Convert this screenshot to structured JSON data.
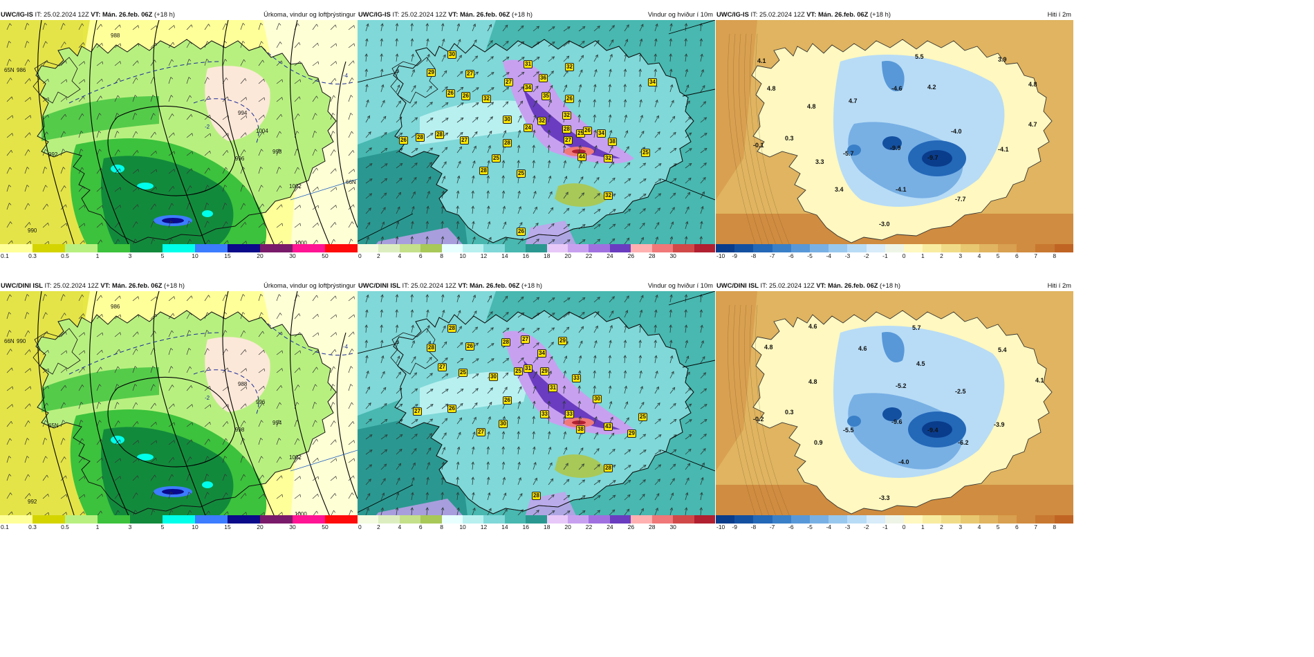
{
  "panels": [
    {
      "id": "igis-precip",
      "model": "UWC/IG-IS",
      "it": "IT: 25.02.2024 12Z",
      "vt": "VT: Mán. 26.feb. 06Z",
      "lead": "(+18 h)",
      "title": "Úrkoma, vindur og loftþrýstingur",
      "colorbar": {
        "colors": [
          "#ffff99",
          "#d4d400",
          "#b8f080",
          "#3cc23c",
          "#128a3c",
          "#00ffea",
          "#3c7cff",
          "#0a0a8a",
          "#7a1a6a",
          "#ff1493",
          "#ff0a0a"
        ],
        "ticks": [
          "0.1",
          "0.3",
          "0.5",
          "1",
          "3",
          "5",
          "10",
          "15",
          "20",
          "30",
          "50"
        ]
      },
      "map_labels": [
        "-2",
        "-4",
        "1000",
        "1002",
        "1004",
        "996",
        "998",
        "994",
        "988",
        "986",
        "990",
        "992",
        "65N",
        "66N"
      ]
    },
    {
      "id": "igis-wind",
      "model": "UWC/IG-IS",
      "it": "IT: 25.02.2024 12Z",
      "vt": "VT: Mán. 26.feb. 06Z",
      "lead": "(+18 h)",
      "title": "Vindur og hviður í 10m",
      "colorbar": {
        "colors": [
          "#f4fbe0",
          "#dceec0",
          "#c4e08a",
          "#a8c858",
          "#e8ffff",
          "#b8f0f0",
          "#80d8d8",
          "#48b8b0",
          "#2a9890",
          "#e8c8f8",
          "#c8a0f0",
          "#a070e0",
          "#6a3cc0",
          "#ffb0b0",
          "#f07878",
          "#d04848",
          "#b02030"
        ],
        "ticks": [
          "0",
          "2",
          "4",
          "6",
          "8",
          "10",
          "12",
          "14",
          "16",
          "18",
          "20",
          "22",
          "24",
          "26",
          "28",
          "30"
        ]
      },
      "gust_labels": [
        "30",
        "29",
        "26",
        "27",
        "31",
        "36",
        "32",
        "27",
        "34",
        "32",
        "35",
        "26",
        "30",
        "32",
        "28",
        "24",
        "26",
        "32",
        "28",
        "27",
        "25",
        "26",
        "34",
        "34",
        "38",
        "44",
        "25",
        "32",
        "26",
        "28",
        "28",
        "27",
        "25",
        "28",
        "32",
        "26",
        "25"
      ]
    },
    {
      "id": "igis-temp",
      "model": "UWC/IG-IS",
      "it": "IT: 25.02.2024 12Z",
      "vt": "VT: Mán. 26.feb. 06Z",
      "lead": "(+18 h)",
      "title": "Hiti í 2m",
      "colorbar": {
        "colors": [
          "#0a3c8c",
          "#1450a0",
          "#2468b8",
          "#3a80c8",
          "#5898d8",
          "#78b0e4",
          "#98c8ee",
          "#b8dcf6",
          "#d8ecfa",
          "#eef5e6",
          "#fff8c0",
          "#f8eca0",
          "#f0dc88",
          "#e8c870",
          "#e0b460",
          "#d8a050",
          "#d08c40",
          "#c87830",
          "#c06424"
        ],
        "ticks": [
          "-10",
          "-9",
          "-8",
          "-7",
          "-6",
          "-5",
          "-4",
          "-3",
          "-2",
          "-1",
          "0",
          "1",
          "2",
          "3",
          "4",
          "5",
          "6",
          "7",
          "8"
        ]
      },
      "temp_labels": [
        "4.1",
        "5.5",
        "3.9",
        "4.8",
        "-4.6",
        "4.2",
        "4.8",
        "4.8",
        "4.7",
        "-4.0",
        "4.7",
        "0.3",
        "-0.1",
        "-5.7",
        "-9.9",
        "-9.7",
        "-4.1",
        "3.3",
        "-4.1",
        "3.4",
        "-7.7",
        "-3.0"
      ]
    },
    {
      "id": "dini-precip",
      "model": "UWC/DINI ISL",
      "it": "IT: 25.02.2024 12Z",
      "vt": "VT: Mán. 26.feb. 06Z",
      "lead": "(+18 h)",
      "title": "Úrkoma, vindur og loftþrýstingur",
      "colorbar": {
        "colors": [
          "#ffff99",
          "#d4d400",
          "#b8f080",
          "#3cc23c",
          "#128a3c",
          "#00ffea",
          "#3c7cff",
          "#0a0a8a",
          "#7a1a6a",
          "#ff1493",
          "#ff0a0a"
        ],
        "ticks": [
          "0.1",
          "0.3",
          "0.5",
          "1",
          "3",
          "5",
          "10",
          "15",
          "20",
          "30",
          "50"
        ]
      },
      "map_labels": [
        "-2",
        "-4",
        "1000",
        "1002",
        "996",
        "998",
        "994",
        "988",
        "986",
        "990",
        "992",
        "65N",
        "66N"
      ]
    },
    {
      "id": "dini-wind",
      "model": "UWC/DINI ISL",
      "it": "IT: 25.02.2024 12Z",
      "vt": "VT: Mán. 26.feb. 06Z",
      "lead": "(+18 h)",
      "title": "Vindur og hviður í 10m",
      "colorbar": {
        "colors": [
          "#f4fbe0",
          "#dceec0",
          "#c4e08a",
          "#a8c858",
          "#e8ffff",
          "#b8f0f0",
          "#80d8d8",
          "#48b8b0",
          "#2a9890",
          "#e8c8f8",
          "#c8a0f0",
          "#a070e0",
          "#6a3cc0",
          "#ffb0b0",
          "#f07878",
          "#d04848",
          "#b02030"
        ],
        "ticks": [
          "0",
          "2",
          "4",
          "6",
          "8",
          "10",
          "12",
          "14",
          "16",
          "18",
          "20",
          "22",
          "24",
          "26",
          "28",
          "30"
        ]
      },
      "gust_labels": [
        "28",
        "28",
        "26",
        "27",
        "25",
        "28",
        "27",
        "34",
        "29",
        "31",
        "29",
        "27",
        "30",
        "33",
        "26",
        "31",
        "25",
        "26",
        "33",
        "30",
        "33",
        "38",
        "43",
        "25",
        "29",
        "27",
        "30",
        "28",
        "28"
      ]
    },
    {
      "id": "dini-temp",
      "model": "UWC/DINI ISL",
      "it": "IT: 25.02.2024 12Z",
      "vt": "VT: Mán. 26.feb. 06Z",
      "lead": "(+18 h)",
      "title": "Hiti í 2m",
      "colorbar": {
        "colors": [
          "#0a3c8c",
          "#1450a0",
          "#2468b8",
          "#3a80c8",
          "#5898d8",
          "#78b0e4",
          "#98c8ee",
          "#b8dcf6",
          "#d8ecfa",
          "#eef5e6",
          "#fff8c0",
          "#f8eca0",
          "#f0dc88",
          "#e8c870",
          "#e0b460",
          "#d8a050",
          "#d08c40",
          "#c87830",
          "#c06424"
        ],
        "ticks": [
          "-10",
          "-9",
          "-8",
          "-7",
          "-6",
          "-5",
          "-4",
          "-3",
          "-2",
          "-1",
          "0",
          "1",
          "2",
          "3",
          "4",
          "5",
          "6",
          "7",
          "8"
        ]
      },
      "temp_labels": [
        "4.6",
        "5.7",
        "4.8",
        "4.6",
        "5.4",
        "4.5",
        "4.8",
        "-5.2",
        "-2.5",
        "4.1",
        "0.3",
        "-0.2",
        "-5.5",
        "-9.6",
        "-9.4",
        "-6.2",
        "-3.9",
        "0.9",
        "-4.0",
        "-3.3"
      ]
    }
  ]
}
